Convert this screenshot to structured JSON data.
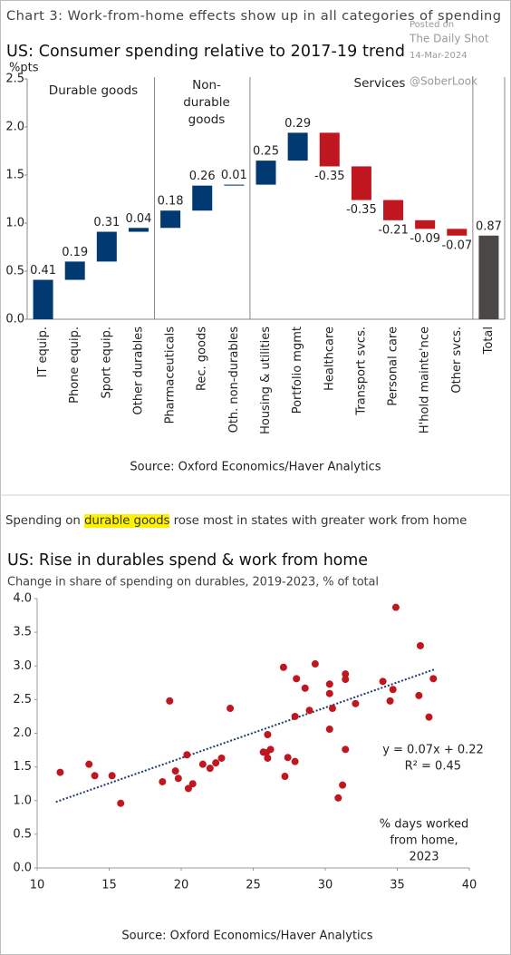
{
  "watermark": [
    "Posted on",
    "The Daily Shot",
    "14-Mar-2024",
    "@SoberLook"
  ],
  "chart_data": [
    {
      "type": "waterfall",
      "heading": "Chart 3: Work-from-home effects show up in all categories of spending",
      "title": "US: Consumer spending relative to 2017-19 trend",
      "y_label": "%pts",
      "groups": [
        [
          "Durable goods"
        ],
        [
          "Non-",
          "durable",
          "goods"
        ],
        [
          "Services"
        ]
      ],
      "categories": [
        "IT equip.",
        "Phone equip.",
        "Sport equip.",
        "Other durables",
        "Pharmaceuticals",
        "Rec. goods",
        "Oth. non-durables",
        "Housing & utilities",
        "Portfolio mgmt",
        "Healthcare",
        "Transport svcs.",
        "Personal care",
        "H'hold mainte'nce",
        "Other svcs.",
        "Total"
      ],
      "values": [
        0.41,
        0.19,
        0.31,
        0.04,
        0.18,
        0.26,
        0.01,
        0.25,
        0.29,
        -0.35,
        -0.35,
        -0.21,
        -0.09,
        -0.07,
        0.87
      ],
      "colors": {
        "increase": "#003a70",
        "decrease": "#c0161f",
        "total": "#4a4747"
      },
      "ylim": [
        0,
        2.5
      ],
      "yticks": [
        {
          "value": 0,
          "label": "0.0"
        },
        0.5,
        {
          "value": 1,
          "label": "1.0"
        },
        1.5,
        {
          "value": 2,
          "label": "2.0"
        },
        2.5
      ],
      "source": "Source: Oxford Economics/Haver Analytics"
    },
    {
      "type": "scatter",
      "heading": [
        "Spending on ",
        "durable goods",
        " rose most in states with greater work from home"
      ],
      "title": "US: Rise in durables spend & work from home",
      "subtitle": "Change in share of spending on durables, 2019-2023, % of total",
      "annotation": [
        "y = 0.07x + 0.22",
        "R² = 0.45"
      ],
      "x_label": [
        "% days worked",
        "from home,",
        "2023"
      ],
      "x": [
        11.6,
        13.6,
        14.0,
        15.2,
        15.8,
        19.2,
        18.7,
        19.6,
        19.8,
        20.4,
        20.5,
        20.8,
        21.5,
        22.0,
        22.4,
        22.8,
        23.4,
        25.7,
        25.9,
        26.0,
        26.0,
        26.2,
        27.1,
        27.4,
        27.2,
        27.9,
        28.0,
        27.9,
        28.6,
        28.9,
        29.3,
        30.3,
        30.3,
        30.5,
        30.3,
        30.9,
        31.2,
        31.4,
        31.4,
        31.4,
        32.1,
        34.0,
        34.5,
        34.7,
        34.9,
        36.5,
        36.6,
        37.2,
        37.5
      ],
      "y": [
        1.42,
        1.54,
        1.37,
        1.37,
        0.96,
        2.48,
        1.28,
        1.44,
        1.33,
        1.68,
        1.18,
        1.25,
        1.54,
        1.48,
        1.56,
        1.63,
        2.37,
        1.72,
        1.71,
        1.98,
        1.63,
        1.76,
        2.98,
        1.64,
        1.36,
        2.25,
        2.81,
        1.58,
        2.67,
        2.34,
        3.03,
        2.73,
        2.59,
        2.37,
        2.06,
        1.04,
        1.23,
        2.8,
        2.88,
        1.76,
        2.44,
        2.77,
        2.48,
        2.65,
        3.87,
        2.56,
        3.3,
        2.24,
        2.81
      ],
      "color": "#c0161f",
      "trendline": {
        "x": [
          11.3,
          37.6
        ],
        "y": [
          0.98,
          2.95
        ],
        "color": "#1f3a6e"
      },
      "xlim": [
        10,
        40
      ],
      "xticks": [
        10,
        15,
        20,
        25,
        30,
        35,
        40
      ],
      "ylim": [
        0,
        4
      ],
      "yticks": [
        {
          "value": 0,
          "label": "0.0"
        },
        0.5,
        {
          "value": 1,
          "label": "1.0"
        },
        1.5,
        {
          "value": 2,
          "label": "2.0"
        },
        2.5,
        {
          "value": 3,
          "label": "3.0"
        },
        3.5,
        {
          "value": 4,
          "label": "4.0"
        }
      ],
      "source": "Source: Oxford Economics/Haver Analytics"
    }
  ]
}
